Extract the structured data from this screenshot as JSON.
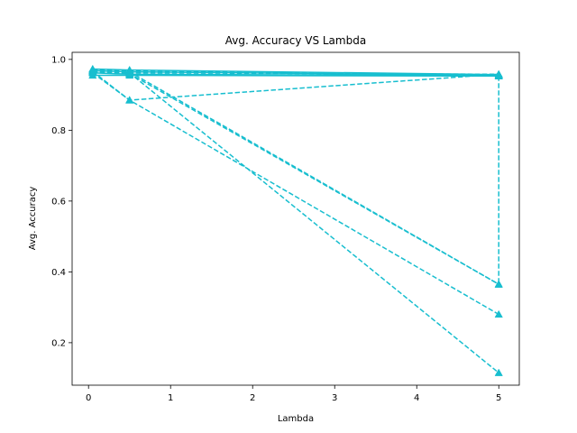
{
  "chart_data": {
    "type": "line",
    "title": "Avg. Accuracy VS Lambda",
    "xlabel": "Lambda",
    "ylabel": "Avg. Accuracy",
    "xlim": [
      -0.2,
      5.25
    ],
    "ylim": [
      0.08,
      1.02
    ],
    "xticks": [
      0,
      1,
      2,
      3,
      4,
      5
    ],
    "yticks": [
      0.2,
      0.4,
      0.6,
      0.8,
      1.0
    ],
    "ytick_labels": [
      "0.2",
      "0.4",
      "0.6",
      "0.8",
      "1.0"
    ],
    "grid": false,
    "legend": "none",
    "color": "#17becf",
    "marker": "triangle-up",
    "series": [
      {
        "style": "solid",
        "x": [
          0.05,
          0.5,
          5
        ],
        "y": [
          0.973,
          0.97,
          0.957
        ]
      },
      {
        "style": "solid",
        "x": [
          0.05,
          0.5,
          5
        ],
        "y": [
          0.968,
          0.965,
          0.955
        ]
      },
      {
        "style": "solid",
        "x": [
          0.05,
          0.5,
          5
        ],
        "y": [
          0.962,
          0.958,
          0.954
        ]
      },
      {
        "style": "solid",
        "x": [
          0.05,
          0.5,
          5
        ],
        "y": [
          0.955,
          0.955,
          0.953
        ]
      },
      {
        "style": "dashed",
        "x": [
          0.05,
          0.5,
          5
        ],
        "y": [
          0.97,
          0.968,
          0.955
        ]
      },
      {
        "style": "dashed",
        "x": [
          0.05,
          0.5,
          5
        ],
        "y": [
          0.965,
          0.962,
          0.958
        ]
      },
      {
        "style": "dashed",
        "x": [
          0.05,
          0.5,
          5
        ],
        "y": [
          0.962,
          0.885,
          0.958
        ]
      },
      {
        "style": "dashed",
        "x": [
          0.05,
          0.5,
          5
        ],
        "y": [
          0.97,
          0.965,
          0.365
        ]
      },
      {
        "style": "dashed",
        "x": [
          0.05,
          0.5,
          5
        ],
        "y": [
          0.968,
          0.962,
          0.115
        ]
      },
      {
        "style": "dashed",
        "x": [
          0.05,
          0.5,
          5
        ],
        "y": [
          0.966,
          0.885,
          0.28
        ]
      },
      {
        "style": "dashed",
        "x": [
          0.05,
          0.5,
          5
        ],
        "y": [
          0.963,
          0.96,
          0.365
        ]
      },
      {
        "style": "dashed",
        "x": [
          5,
          5
        ],
        "y": [
          0.953,
          0.365
        ]
      }
    ]
  }
}
